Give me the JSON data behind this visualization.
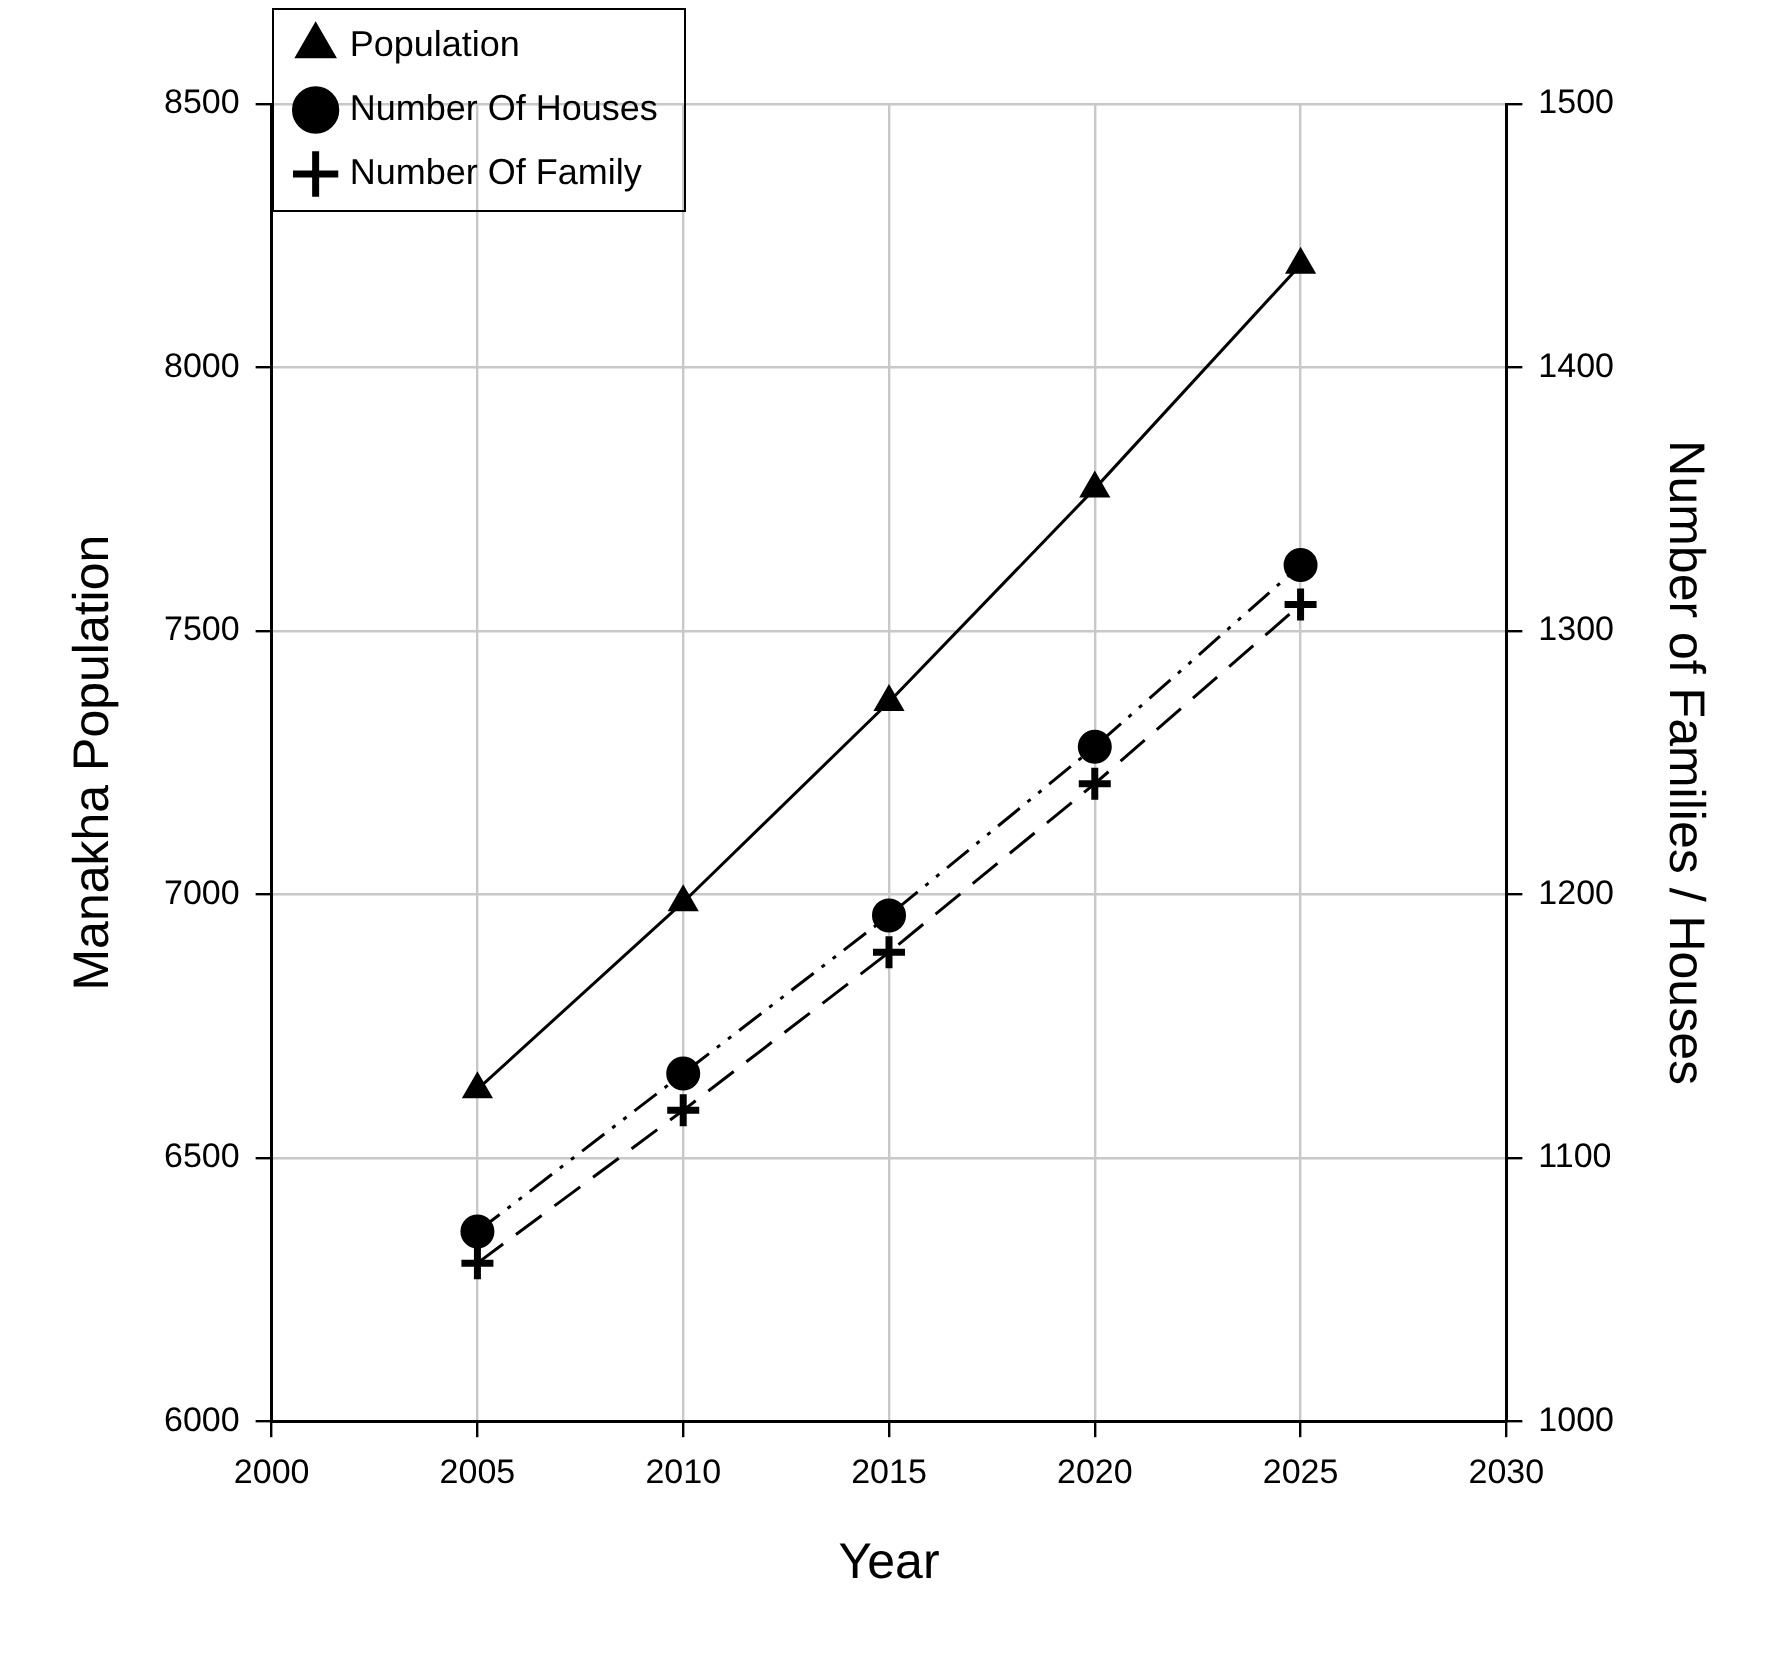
{
  "chart_data": {
    "type": "line",
    "xlabel": "Year",
    "ylabel": "Manakha Population",
    "y2label": "Number of Families / Houses",
    "x": [
      2005,
      2010,
      2015,
      2020,
      2025
    ],
    "series": [
      {
        "name": "Population",
        "color": "#000000",
        "values": [
          6630,
          6985,
          7365,
          7770,
          8195
        ],
        "marker": "triangle",
        "line_style": "solid"
      },
      {
        "name": "Number Of Houses",
        "color": "#000000",
        "values": [
          1072,
          1132,
          1192,
          1256,
          1325
        ],
        "axis": "y2",
        "marker": "circle",
        "line_style": "dashdot"
      },
      {
        "name": "Number Of Family",
        "color": "#000000",
        "values": [
          1060,
          1118,
          1178,
          1242,
          1310
        ],
        "axis": "y2",
        "marker": "cross",
        "line_style": "dashed"
      }
    ],
    "xlim": [
      2000,
      2030
    ],
    "xticks": [
      2000,
      2005,
      2010,
      2015,
      2020,
      2025,
      2030
    ],
    "ylim": [
      6000,
      8500
    ],
    "yticks": [
      6000,
      6500,
      7000,
      7500,
      8000,
      8500
    ],
    "y2lim": [
      1000,
      1500
    ],
    "y2ticks": [
      1000,
      1100,
      1200,
      1300,
      1400,
      1500
    ],
    "grid": true,
    "legend": "top left"
  }
}
